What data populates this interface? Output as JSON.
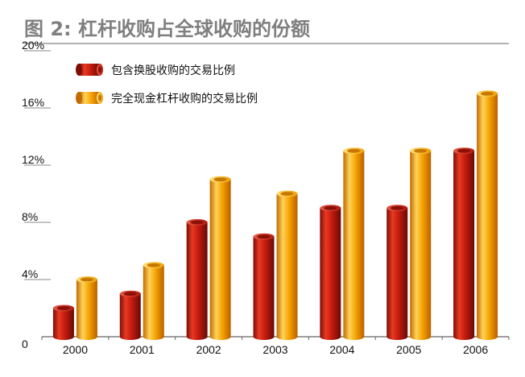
{
  "chart_data": {
    "type": "bar",
    "title": "图 2: 杠杆收购占全球收购的份额",
    "categories": [
      "2000",
      "2001",
      "2002",
      "2003",
      "2004",
      "2005",
      "2006"
    ],
    "series": [
      {
        "name": "包含换股收购的交易比例",
        "values": [
          2,
          3,
          8,
          7,
          9,
          9,
          13
        ],
        "color": "#c81e12"
      },
      {
        "name": "完全现金杠杆收购的交易比例",
        "values": [
          4,
          5,
          11,
          10,
          13,
          13,
          17
        ],
        "color": "#f5a100"
      }
    ],
    "ylim": [
      0,
      20
    ],
    "yticks": [
      "0",
      "4%",
      "8%",
      "12%",
      "16%",
      "20%"
    ],
    "grid": false,
    "legend_position": "top-left",
    "colors": {
      "title": "#7f7f7f",
      "axis": "#666666",
      "text": "#111111"
    }
  }
}
